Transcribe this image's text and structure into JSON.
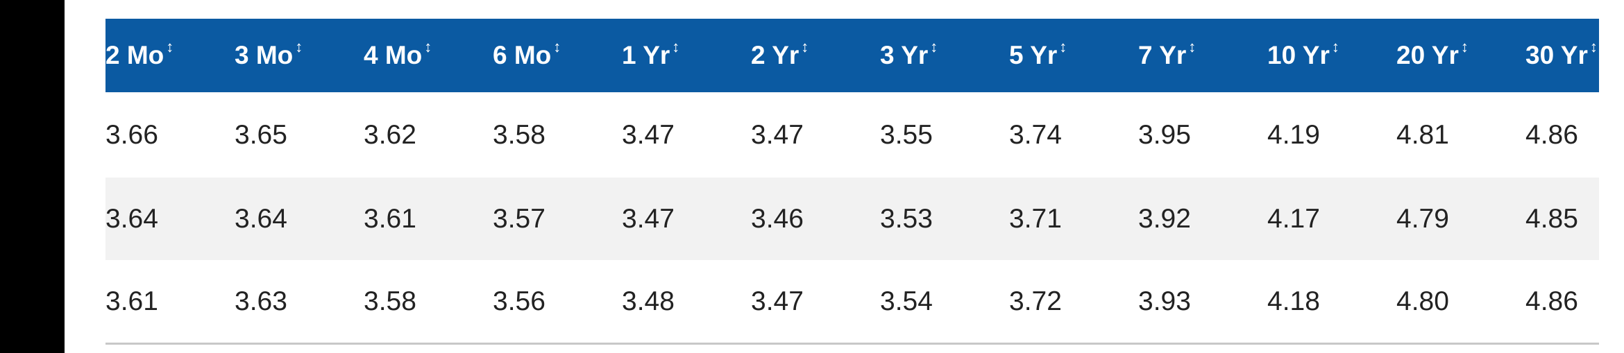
{
  "table": {
    "headers": [
      "2 Mo",
      "3 Mo",
      "4 Mo",
      "6 Mo",
      "1 Yr",
      "2 Yr",
      "3 Yr",
      "5 Yr",
      "7 Yr",
      "10 Yr",
      "20 Yr",
      "30 Yr"
    ],
    "rows": [
      [
        "3.66",
        "3.65",
        "3.62",
        "3.58",
        "3.47",
        "3.47",
        "3.55",
        "3.74",
        "3.95",
        "4.19",
        "4.81",
        "4.86"
      ],
      [
        "3.64",
        "3.64",
        "3.61",
        "3.57",
        "3.47",
        "3.46",
        "3.53",
        "3.71",
        "3.92",
        "4.17",
        "4.79",
        "4.85"
      ],
      [
        "3.61",
        "3.63",
        "3.58",
        "3.56",
        "3.48",
        "3.47",
        "3.54",
        "3.72",
        "3.93",
        "4.18",
        "4.80",
        "4.86"
      ]
    ]
  }
}
